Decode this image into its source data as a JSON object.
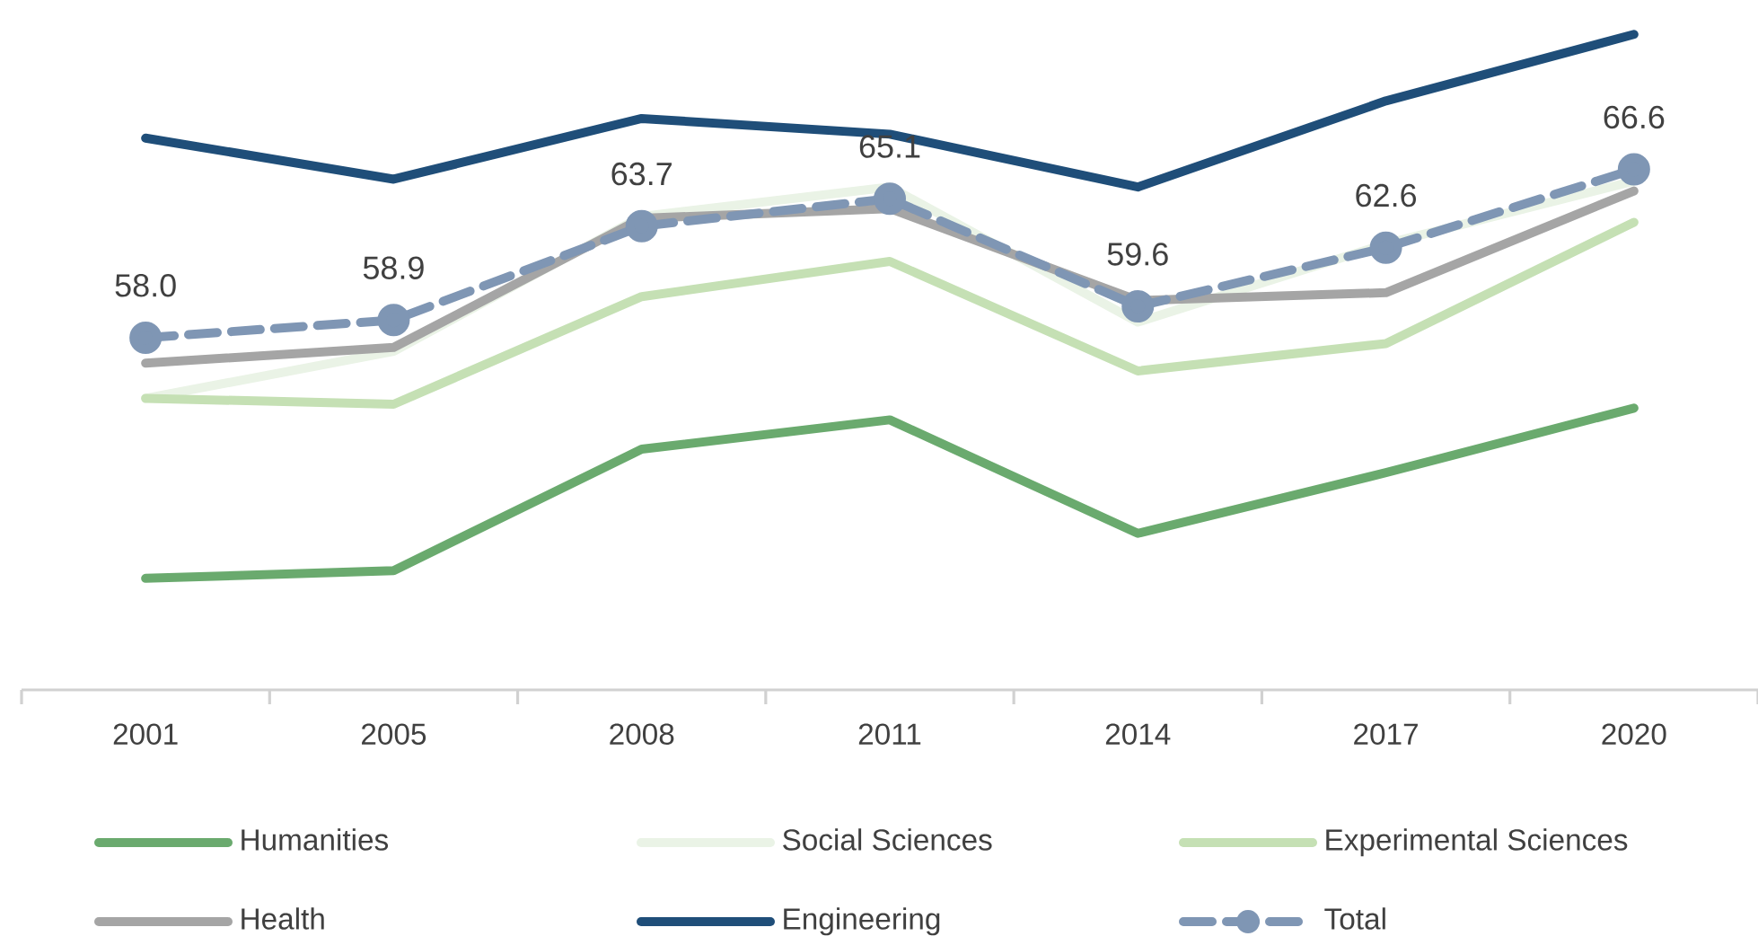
{
  "chart_data": {
    "type": "line",
    "categories": [
      "2001",
      "2005",
      "2008",
      "2011",
      "2014",
      "2017",
      "2020"
    ],
    "tick_labels": "x",
    "legend": "bottom",
    "series": [
      {
        "name": "Humanities",
        "color": "#6aaa6e",
        "values": [
          45.7,
          46.1,
          52.3,
          53.8,
          48.0,
          51.1,
          54.4
        ]
      },
      {
        "name": "Social Sciences",
        "color": "#eaf3e6",
        "values": [
          54.9,
          57.3,
          64.2,
          65.7,
          58.8,
          62.8,
          66.0
        ]
      },
      {
        "name": "Experimental Sciences",
        "color": "#c5e0b4",
        "values": [
          54.9,
          54.6,
          60.1,
          61.9,
          56.3,
          57.7,
          63.9
        ]
      },
      {
        "name": "Health",
        "color": "#a5a5a5",
        "values": [
          56.7,
          57.5,
          64.1,
          64.6,
          59.9,
          60.3,
          65.5
        ]
      },
      {
        "name": "Engineering",
        "color": "#1f4e79",
        "values": [
          68.2,
          66.1,
          69.2,
          68.4,
          65.7,
          70.1,
          73.5
        ]
      },
      {
        "name": "Total",
        "color": "#7f96b4",
        "line_style": "dashed",
        "marker": "circle",
        "values": [
          58.0,
          58.9,
          63.7,
          65.1,
          59.6,
          62.6,
          66.6
        ],
        "value_labels": [
          "58.0",
          "58.9",
          "63.7",
          "65.1",
          "59.6",
          "62.6",
          "66.6"
        ]
      }
    ]
  }
}
